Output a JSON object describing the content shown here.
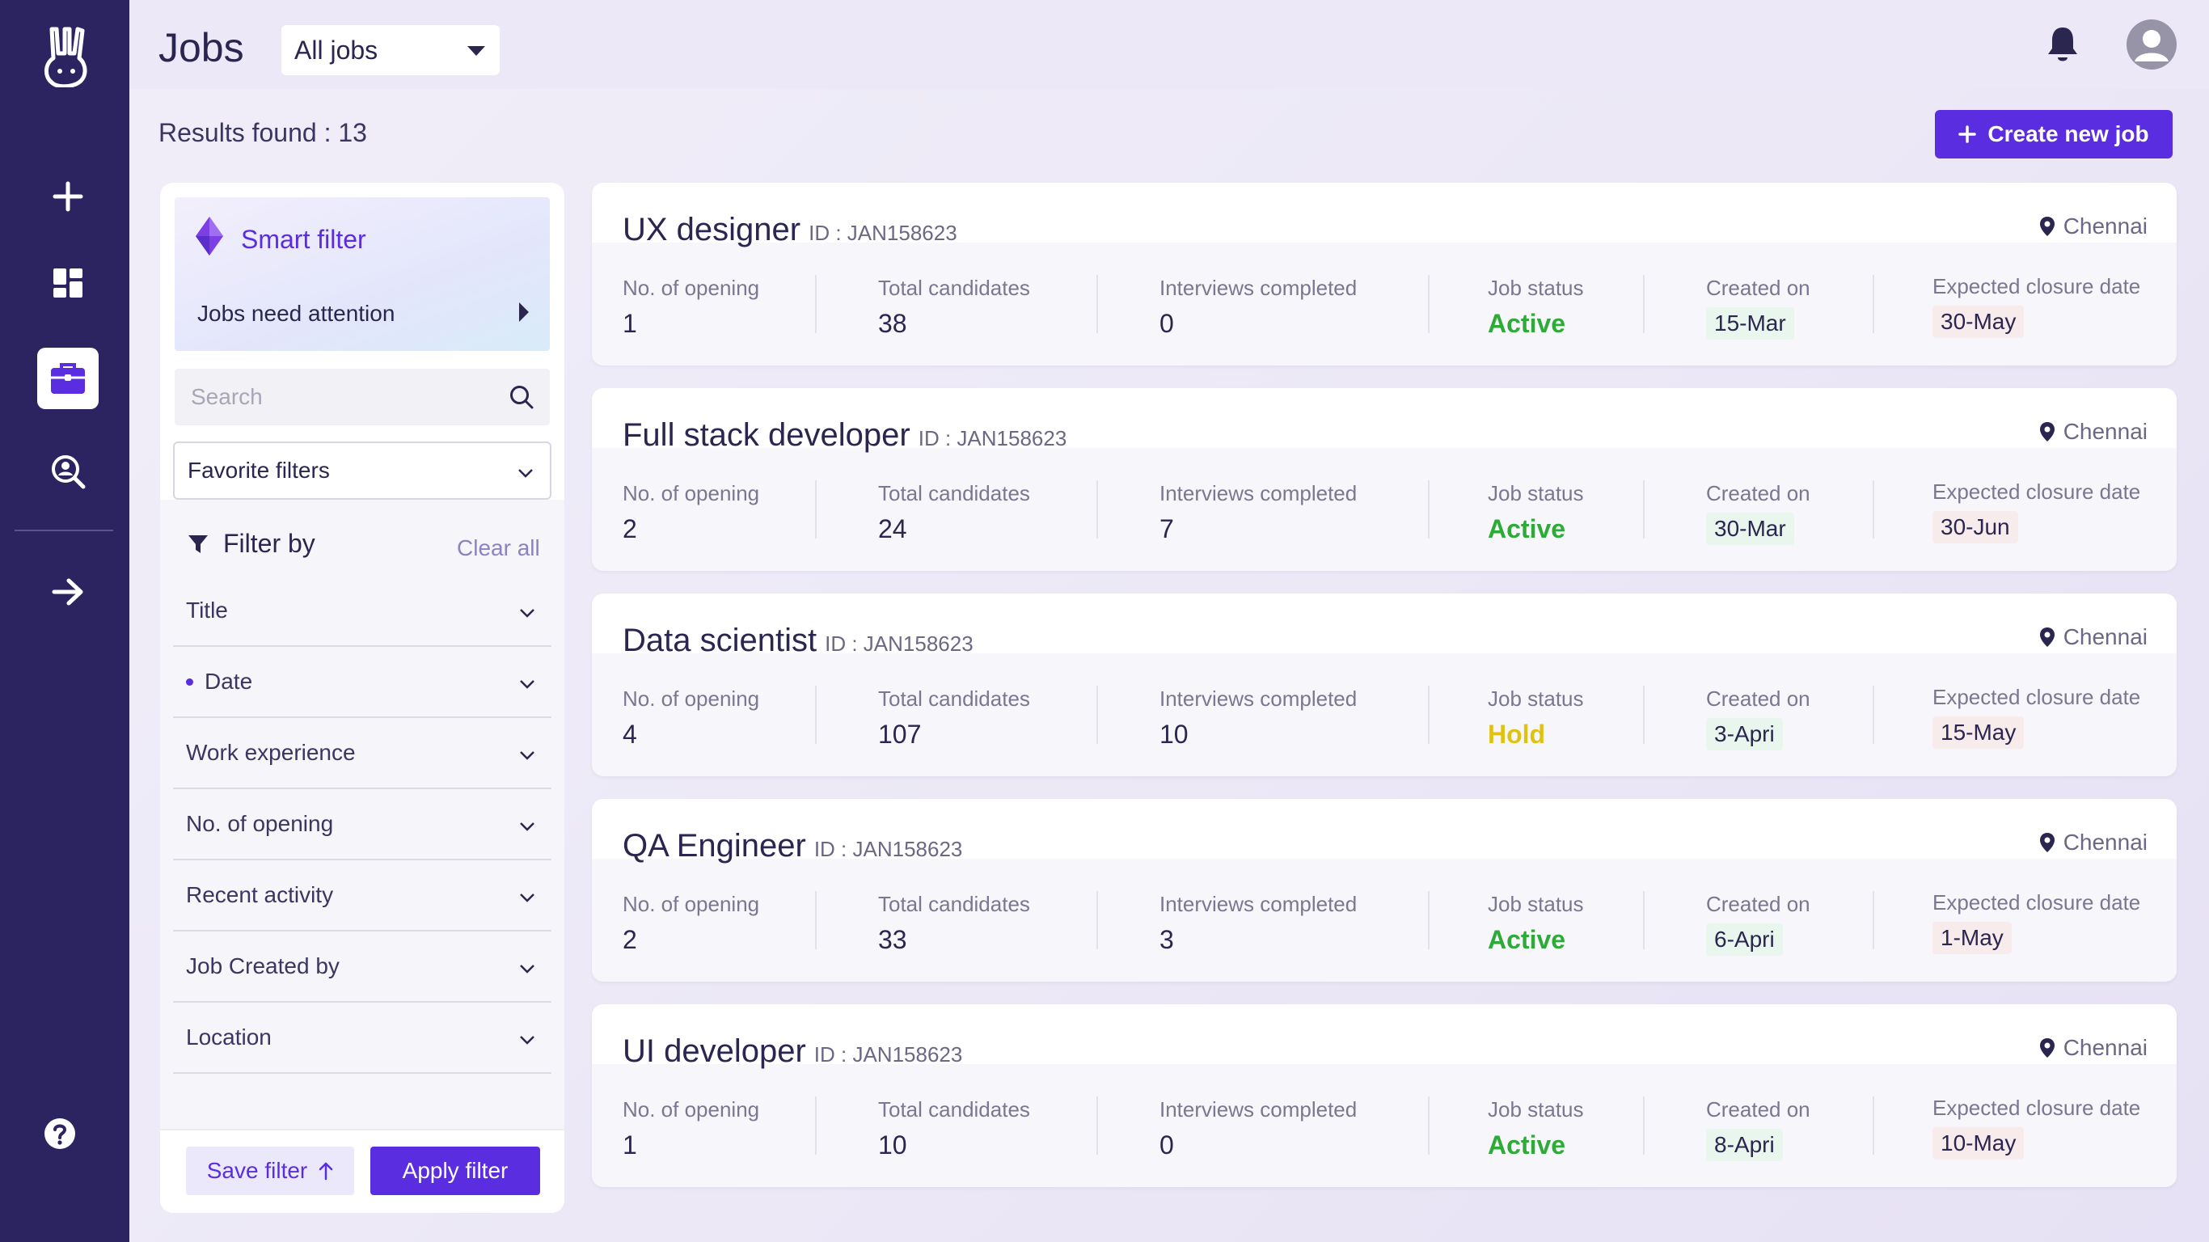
{
  "header": {
    "title": "Jobs",
    "jobs_filter_selected": "All jobs"
  },
  "results_label": "Results found : 13",
  "create_job_label": "Create new job",
  "filter_panel": {
    "smart_filter_title": "Smart filter",
    "attention_label": "Jobs need attention",
    "search_placeholder": "Search",
    "favorite_filters": "Favorite filters",
    "filter_by_label": "Filter by",
    "clear_all_label": "Clear all",
    "filters": [
      {
        "label": "Title",
        "active": false
      },
      {
        "label": "Date",
        "active": true
      },
      {
        "label": "Work experience",
        "active": false
      },
      {
        "label": "No. of opening",
        "active": false
      },
      {
        "label": "Recent activity",
        "active": false
      },
      {
        "label": "Job Created by",
        "active": false
      },
      {
        "label": "Location",
        "active": false
      }
    ],
    "save_filter_label": "Save filter",
    "apply_filter_label": "Apply filter"
  },
  "column_labels": {
    "openings": "No. of opening",
    "candidates": "Total candidates",
    "interviews": "Interviews completed",
    "status": "Job status",
    "created": "Created on",
    "closure": "Expected closure date"
  },
  "status_colors": {
    "Active": "#2eaa38",
    "Hold": "#e0c214"
  },
  "jobs": [
    {
      "title": "UX designer",
      "id": "ID : JAN158623",
      "location": "Chennai",
      "openings": "1",
      "candidates": "38",
      "interviews": "0",
      "status": "Active",
      "created": "15-Mar",
      "closure": "30-May"
    },
    {
      "title": "Full stack developer",
      "id": "ID : JAN158623",
      "location": "Chennai",
      "openings": "2",
      "candidates": "24",
      "interviews": "7",
      "status": "Active",
      "created": "30-Mar",
      "closure": "30-Jun"
    },
    {
      "title": "Data scientist",
      "id": "ID : JAN158623",
      "location": "Chennai",
      "openings": "4",
      "candidates": "107",
      "interviews": "10",
      "status": "Hold",
      "created": "3-Apri",
      "closure": "15-May"
    },
    {
      "title": "QA Engineer",
      "id": "ID : JAN158623",
      "location": "Chennai",
      "openings": "2",
      "candidates": "33",
      "interviews": "3",
      "status": "Active",
      "created": "6-Apri",
      "closure": "1-May"
    },
    {
      "title": "UI developer",
      "id": "ID : JAN158623",
      "location": "Chennai",
      "openings": "1",
      "candidates": "10",
      "interviews": "0",
      "status": "Active",
      "created": "8-Apri",
      "closure": "10-May"
    }
  ],
  "nav": {
    "items": [
      "add-icon",
      "dashboard-icon",
      "briefcase-icon",
      "candidate-search-icon",
      "arrow-right-icon",
      "help-icon"
    ],
    "active": "briefcase-icon"
  }
}
